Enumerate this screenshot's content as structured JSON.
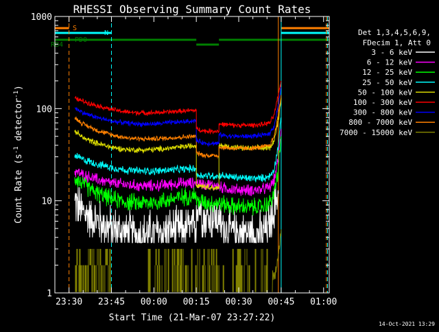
{
  "chart_data": {
    "type": "line",
    "title": "RHESSI Observing Summary Count Rates",
    "xlabel": "Start Time (21-Mar-07 23:27:22)",
    "ylabel_main": "Count Rate (s",
    "ylabel_sup1": "-1",
    "ylabel_mid": " detector",
    "ylabel_sup2": "-1",
    "ylabel_end": ")",
    "y_scale": "log",
    "ylim": [
      1,
      1000
    ],
    "xlim_minutes": [
      -5,
      92
    ],
    "x_ticks": [
      {
        "m": 0,
        "label": "23:30"
      },
      {
        "m": 15,
        "label": "23:45"
      },
      {
        "m": 30,
        "label": "00:00"
      },
      {
        "m": 45,
        "label": "00:15"
      },
      {
        "m": 60,
        "label": "00:30"
      },
      {
        "m": 75,
        "label": "00:45"
      },
      {
        "m": 90,
        "label": "01:00"
      }
    ],
    "y_ticks": [
      {
        "v": 1,
        "label": "1"
      },
      {
        "v": 10,
        "label": "10"
      },
      {
        "v": 100,
        "label": "100"
      },
      {
        "v": 1000,
        "label": "1000"
      }
    ],
    "legend_header": [
      "Det 1,3,4,5,6,9,",
      "FDecim 1, Att 0"
    ],
    "series": [
      {
        "name": "3 - 6 keV",
        "color": "#ffffff",
        "noise": 0.45,
        "quant": true,
        "segments": [
          {
            "x": [
              2,
              5,
              10,
              15,
              20,
              25,
              30,
              35,
              40,
              45
            ],
            "y": [
              10,
              7.5,
              6,
              5,
              4.5,
              4.3,
              4.4,
              4.7,
              5.0,
              5.0
            ]
          },
          {
            "x": [
              45,
              46,
              48,
              53
            ],
            "y": [
              9,
              8.5,
              6.5,
              6.5
            ]
          },
          {
            "x": [
              53,
              55,
              58,
              62,
              66,
              69,
              71,
              72.5,
              74
            ],
            "y": [
              5.5,
              5,
              4.6,
              4.5,
              4.4,
              4.5,
              5.5,
              8,
              12
            ]
          }
        ]
      },
      {
        "name": "6 - 12 keV",
        "color": "#ff00ff",
        "noise": 0.12,
        "segments": [
          {
            "x": [
              2,
              5,
              10,
              15,
              20,
              25,
              30,
              35,
              40,
              45
            ],
            "y": [
              21,
              19,
              17,
              15.5,
              15,
              14.5,
              14.5,
              15,
              15.5,
              15.5
            ]
          },
          {
            "x": [
              45,
              53
            ],
            "y": [
              15.5,
              14.5
            ]
          },
          {
            "x": [
              53,
              58,
              63,
              68,
              71,
              72.5,
              74,
              75
            ],
            "y": [
              14,
              13.3,
              13,
              13.2,
              14,
              17,
              28,
              60
            ]
          }
        ]
      },
      {
        "name": "12 - 25 keV",
        "color": "#00ff00",
        "noise": 0.18,
        "segments": [
          {
            "x": [
              2,
              5,
              10,
              15,
              20,
              25,
              30,
              35,
              40,
              45
            ],
            "y": [
              18,
              15,
              12,
              10.5,
              9.7,
              9.5,
              9.6,
              10.2,
              11,
              11.5
            ]
          },
          {
            "x": [
              45,
              50,
              53
            ],
            "y": [
              10,
              9.5,
              9.5
            ]
          },
          {
            "x": [
              53,
              58,
              63,
              68,
              71,
              72.5,
              74,
              75
            ],
            "y": [
              9.5,
              8.7,
              8.5,
              8.6,
              9.5,
              12,
              22,
              50
            ]
          }
        ]
      },
      {
        "name": "25 - 50 keV",
        "color": "#00ffff",
        "noise": 0.08,
        "segments": [
          {
            "x": [
              2,
              5,
              10,
              15,
              20,
              25,
              30,
              35,
              40,
              45
            ],
            "y": [
              31,
              28,
              25,
              23,
              21.5,
              21,
              21,
              21.5,
              22,
              22.5
            ]
          },
          {
            "x": [
              45,
              53
            ],
            "y": [
              19,
              18.5
            ]
          },
          {
            "x": [
              53,
              58,
              63,
              68,
              71,
              72.5,
              74,
              75
            ],
            "y": [
              19,
              18,
              17.5,
              17.5,
              18.5,
              22,
              40,
              80
            ]
          }
        ]
      },
      {
        "name": "50 - 100 keV",
        "color": "#dddd00",
        "noise": 0.06,
        "segments": [
          {
            "x": [
              2,
              5,
              10,
              15,
              20,
              25,
              30,
              35,
              40,
              45
            ],
            "y": [
              58,
              48,
              42,
              38,
              36,
              35.5,
              36,
              37,
              38.5,
              40
            ]
          },
          {
            "x": [
              45,
              53
            ],
            "y": [
              15,
              13.5
            ]
          },
          {
            "x": [
              53,
              58,
              63,
              68,
              71,
              72.5,
              74,
              75
            ],
            "y": [
              40,
              38,
              37,
              37,
              38,
              45,
              75,
              130
            ]
          }
        ]
      },
      {
        "name": "100 - 300 keV",
        "color": "#ff0000",
        "noise": 0.05,
        "segments": [
          {
            "x": [
              2,
              5,
              10,
              15,
              20,
              25,
              30,
              35,
              40,
              45
            ],
            "y": [
              130,
              120,
              108,
              98,
              92,
              90,
              90,
              92,
              94,
              96
            ]
          },
          {
            "x": [
              45,
              48,
              53
            ],
            "y": [
              60,
              57,
              57
            ]
          },
          {
            "x": [
              53,
              58,
              63,
              68,
              71,
              72.5,
              74,
              75
            ],
            "y": [
              68,
              66,
              66,
              67,
              70,
              85,
              140,
              200
            ]
          }
        ]
      },
      {
        "name": "300 - 800 keV",
        "color": "#0000ff",
        "noise": 0.05,
        "segments": [
          {
            "x": [
              2,
              5,
              10,
              15,
              20,
              25,
              30,
              35,
              40,
              45
            ],
            "y": [
              102,
              90,
              80,
              73,
              70,
              68,
              68,
              70,
              72,
              74
            ]
          },
          {
            "x": [
              45,
              48,
              53
            ],
            "y": [
              45,
              42,
              42
            ]
          },
          {
            "x": [
              53,
              58,
              63,
              68,
              71,
              72.5,
              74,
              75
            ],
            "y": [
              52,
              50,
              50,
              51,
              54,
              65,
              110,
              170
            ]
          }
        ]
      },
      {
        "name": "800 - 7000 keV",
        "color": "#ff8000",
        "noise": 0.05,
        "segments": [
          {
            "x": [
              2,
              5,
              10,
              15,
              20,
              25,
              30,
              35,
              40,
              45
            ],
            "y": [
              80,
              68,
              58,
              52,
              48.5,
              47,
              47,
              48,
              49,
              50
            ]
          },
          {
            "x": [
              45,
              48,
              53
            ],
            "y": [
              33,
              31,
              31
            ]
          },
          {
            "x": [
              53,
              58,
              63,
              68,
              71,
              72.5,
              74,
              75
            ],
            "y": [
              38,
              37,
              37,
              38,
              40,
              50,
              85,
              140
            ]
          }
        ]
      },
      {
        "name": "7000 - 15000 keV",
        "color": "#808000",
        "noise": 0,
        "segments": []
      }
    ],
    "flags": {
      "S": {
        "label": "S",
        "color": "#ff8000",
        "segments": [
          [
            -5,
            0
          ],
          [
            75,
            92
          ]
        ]
      },
      "N": {
        "label": "N",
        "color": "#00ffff",
        "segments": [
          [
            -5,
            15
          ],
          [
            75,
            92
          ]
        ]
      },
      "PD0": {
        "label": "PD0",
        "color": "#008000",
        "segments": [
          [
            -5,
            45
          ],
          [
            53,
            92
          ]
        ]
      },
      "RB4": {
        "label": "RB4",
        "color": "#008000",
        "segments": [
          [
            45,
            53
          ]
        ]
      }
    },
    "vlines": [
      {
        "m": -5,
        "color": "#00ffff",
        "style": "solid"
      },
      {
        "m": 0,
        "color": "#ff8000",
        "style": "dashed"
      },
      {
        "m": 15,
        "color": "#00ffff",
        "style": "dashed"
      },
      {
        "m": 74,
        "color": "#ff8000",
        "style": "solid"
      },
      {
        "m": 75,
        "color": "#00ffff",
        "style": "solid"
      },
      {
        "m": 91,
        "color": "#ff8000",
        "style": "dashed"
      },
      {
        "m": 91.4,
        "color": "#00ffff",
        "style": "dashed"
      }
    ],
    "timestamp": "14-Oct-2021 13:29"
  }
}
